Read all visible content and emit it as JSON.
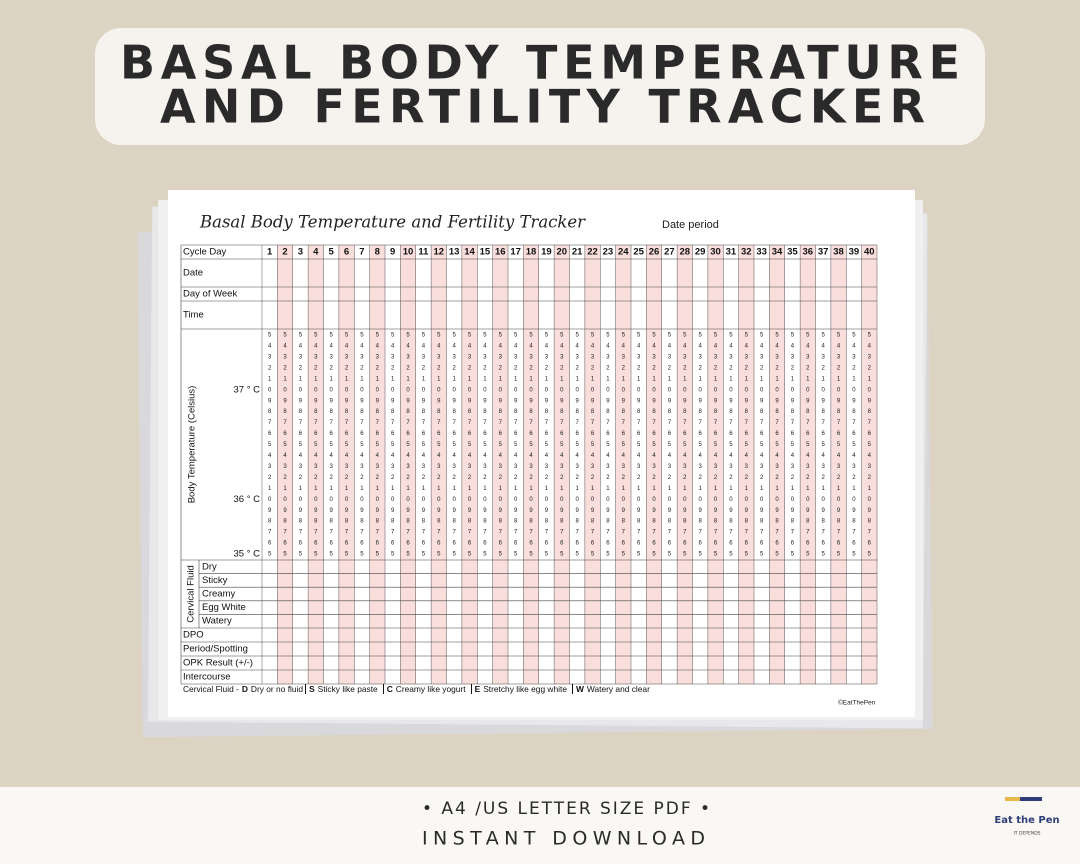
{
  "header": {
    "title_lines": [
      "BASAL BODY TEMPERATURE",
      "AND FERTILITY TRACKER"
    ]
  },
  "sheet": {
    "title": "Basal Body Temperature and Fertility Tracker",
    "date_label": "Date period",
    "table": {
      "cycle_day_label": "Cycle Day",
      "cycle_days": [
        1,
        2,
        3,
        4,
        5,
        6,
        7,
        8,
        9,
        10,
        11,
        12,
        13,
        14,
        15,
        16,
        17,
        18,
        19,
        20,
        21,
        22,
        23,
        24,
        25,
        26,
        27,
        28,
        29,
        30,
        31,
        32,
        33,
        34,
        35,
        36,
        37,
        38,
        39,
        40
      ],
      "top_rows": [
        "Date",
        "Day of Week",
        "Time"
      ],
      "temperature_label": "Body Temperature (Celsius)",
      "temperature_digits": [
        5,
        4,
        3,
        2,
        1,
        0,
        9,
        8,
        7,
        6,
        5,
        4,
        3,
        2,
        1,
        0,
        9,
        8,
        7,
        6,
        5
      ],
      "temperature_labels": [
        null,
        null,
        null,
        null,
        null,
        "37 ° C",
        null,
        null,
        null,
        null,
        null,
        null,
        null,
        null,
        null,
        "36 ° C",
        null,
        null,
        null,
        null,
        "35 ° C"
      ],
      "cervical_fluid_label": "Cervical Fluid",
      "cervical_fluid_rows": [
        "Dry",
        "Sticky",
        "Creamy",
        "Egg White",
        "Watery"
      ],
      "bottom_rows": [
        "DPO",
        "Period/Spotting",
        "OPK Result (+/-)",
        "Intercourse"
      ]
    },
    "legend": {
      "label": "Cervical Fluid -",
      "items": [
        {
          "code": "D",
          "text": "Dry or no fluid"
        },
        {
          "code": "S",
          "text": "Sticky like paste"
        },
        {
          "code": "C",
          "text": "Creamy like yogurt"
        },
        {
          "code": "E",
          "text": "Stretchy like egg white"
        },
        {
          "code": "W",
          "text": "Watery and clear"
        }
      ]
    },
    "copyright": "©EatThePen"
  },
  "banner": {
    "lines": [
      "• A4 /US LETTER SIZE PDF •",
      "INSTANT DOWNLOAD"
    ]
  },
  "logo": {
    "name": "Eat the Pen",
    "tagline": "IT DEPENDS"
  }
}
